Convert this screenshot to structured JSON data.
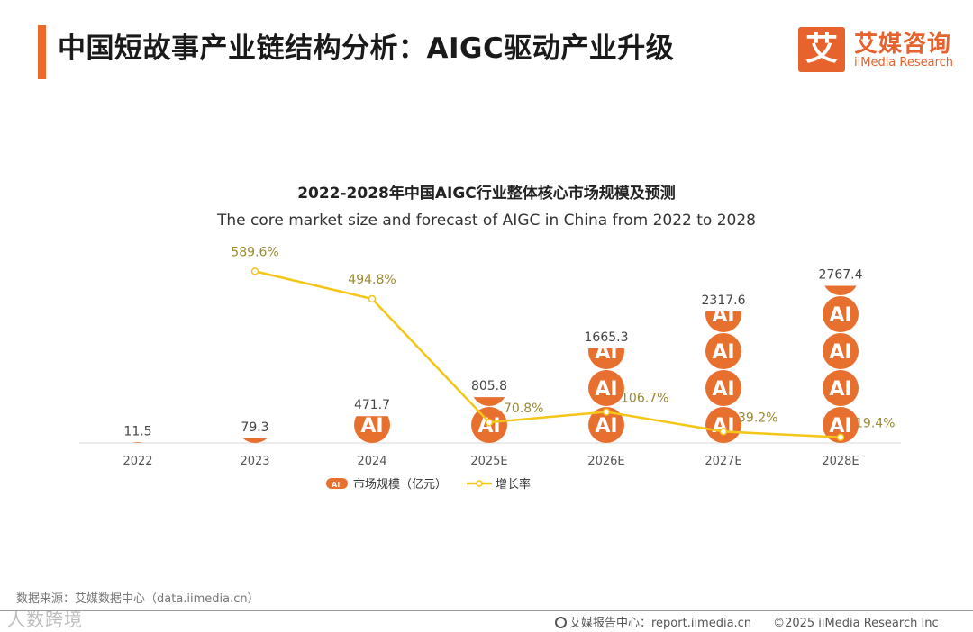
{
  "header": {
    "title": "中国短故事产业链结构分析：AIGC驱动产业升级"
  },
  "logo": {
    "mark": "艾",
    "cn": "艾媒咨询",
    "en": "iiMedia Research"
  },
  "colors": {
    "accent": "#ec6a2e",
    "bar": "#e8702f",
    "line": "#f5c518",
    "growth_label": "#9a8a32"
  },
  "chart_data": {
    "type": "bar+line",
    "title": "2022-2028年中国AIGC行业整体核心市场规模及预测",
    "subtitle": "The core market size and forecast of AIGC in China from 2022 to 2028",
    "categories": [
      "2022",
      "2023",
      "2024",
      "2025E",
      "2026E",
      "2027E",
      "2028E"
    ],
    "series": [
      {
        "name": "市场规模（亿元）",
        "type": "pictorial-bar",
        "icon_text": "AI",
        "values": [
          11.5,
          79.3,
          471.7,
          805.8,
          1665.3,
          2317.6,
          2767.4
        ],
        "labels": [
          "11.5",
          "79.3",
          "471.7",
          "805.8",
          "1665.3",
          "2317.6",
          "2767.4"
        ]
      },
      {
        "name": "增长率",
        "type": "line",
        "values": [
          null,
          589.6,
          494.8,
          70.8,
          106.7,
          39.2,
          19.4
        ],
        "labels": [
          "",
          "589.6%",
          "494.8%",
          "70.8%",
          "106.7%",
          "39.2%",
          "19.4%"
        ]
      }
    ],
    "legend": [
      "市场规模（亿元）",
      "增长率"
    ],
    "legend_position": "bottom-center",
    "grid": false
  },
  "footer": {
    "source": "数据来源：艾媒数据中心（data.iimedia.cn）",
    "watermark": "人数跨境",
    "report": "艾媒报告中心：report.iimedia.cn",
    "copyright": "©2025  iiMedia Research  Inc"
  }
}
